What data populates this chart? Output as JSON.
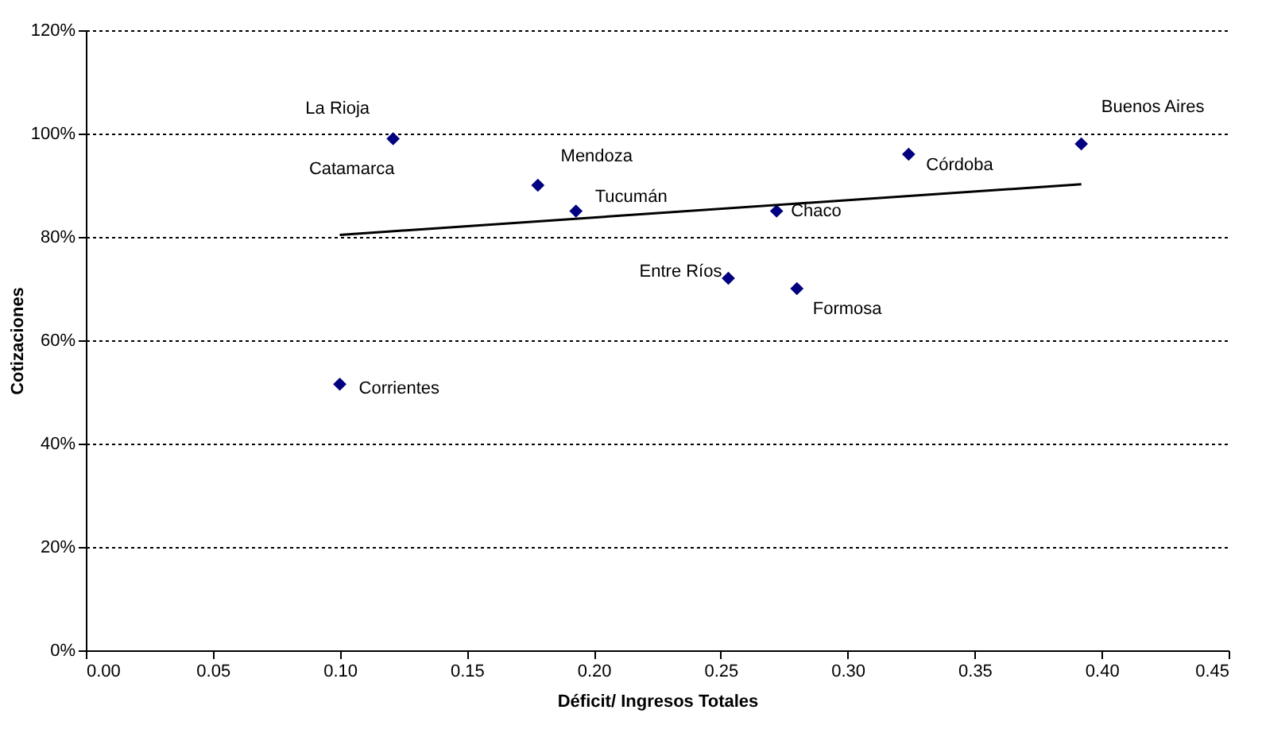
{
  "chart_data": {
    "type": "scatter",
    "xlabel": "Déficit/ Ingresos Totales",
    "ylabel": "Cotizaciones",
    "xlim": [
      0,
      0.45
    ],
    "xticks": [
      {
        "value": 0,
        "label": "0.00"
      },
      {
        "value": 0.05,
        "label": "0.05"
      },
      {
        "value": 0.1,
        "label": "0.10"
      },
      {
        "value": 0.15,
        "label": "0.15"
      },
      {
        "value": 0.2,
        "label": "0.20"
      },
      {
        "value": 0.25,
        "label": "0.25"
      },
      {
        "value": 0.3,
        "label": "0.30"
      },
      {
        "value": 0.35,
        "label": "0.35"
      },
      {
        "value": 0.4,
        "label": "0.40"
      },
      {
        "value": 0.45,
        "label": "0.45"
      }
    ],
    "ylim": [
      0,
      120
    ],
    "yticks": [
      {
        "value": 0,
        "label": "0%"
      },
      {
        "value": 20,
        "label": "20%"
      },
      {
        "value": 40,
        "label": "40%"
      },
      {
        "value": 60,
        "label": "60%"
      },
      {
        "value": 80,
        "label": "80%"
      },
      {
        "value": 100,
        "label": "100%"
      },
      {
        "value": 120,
        "label": "120%"
      }
    ],
    "grid": "y",
    "series": [
      {
        "type": "scatter",
        "color": "#000080",
        "marker": "diamond",
        "x": [
          0.121,
          0.178,
          0.193,
          0.272,
          0.253,
          0.28,
          0.324,
          0.392,
          0.1
        ],
        "values": [
          99,
          90,
          85,
          85,
          72,
          70,
          96,
          98,
          51.5
        ]
      },
      {
        "type": "line",
        "color": "#000000",
        "marker": "none",
        "line_style": "solid",
        "x": [
          0.1,
          0.392
        ],
        "values": [
          80.4,
          90.2
        ]
      }
    ],
    "annotations": [
      {
        "text": "La Rioja",
        "x": 0.121,
        "y": 99
      },
      {
        "text": "Catamarca",
        "x": 0.121,
        "y": 99
      },
      {
        "text": "Mendoza",
        "x": 0.178,
        "y": 90
      },
      {
        "text": "Tucumán",
        "x": 0.193,
        "y": 85
      },
      {
        "text": "Chaco",
        "x": 0.272,
        "y": 85
      },
      {
        "text": "Entre Ríos",
        "x": 0.253,
        "y": 72
      },
      {
        "text": "Formosa",
        "x": 0.28,
        "y": 70
      },
      {
        "text": "Córdoba",
        "x": 0.324,
        "y": 96
      },
      {
        "text": "Buenos Aires",
        "x": 0.392,
        "y": 98
      },
      {
        "text": "Corrientes",
        "x": 0.1,
        "y": 51.5
      }
    ]
  }
}
